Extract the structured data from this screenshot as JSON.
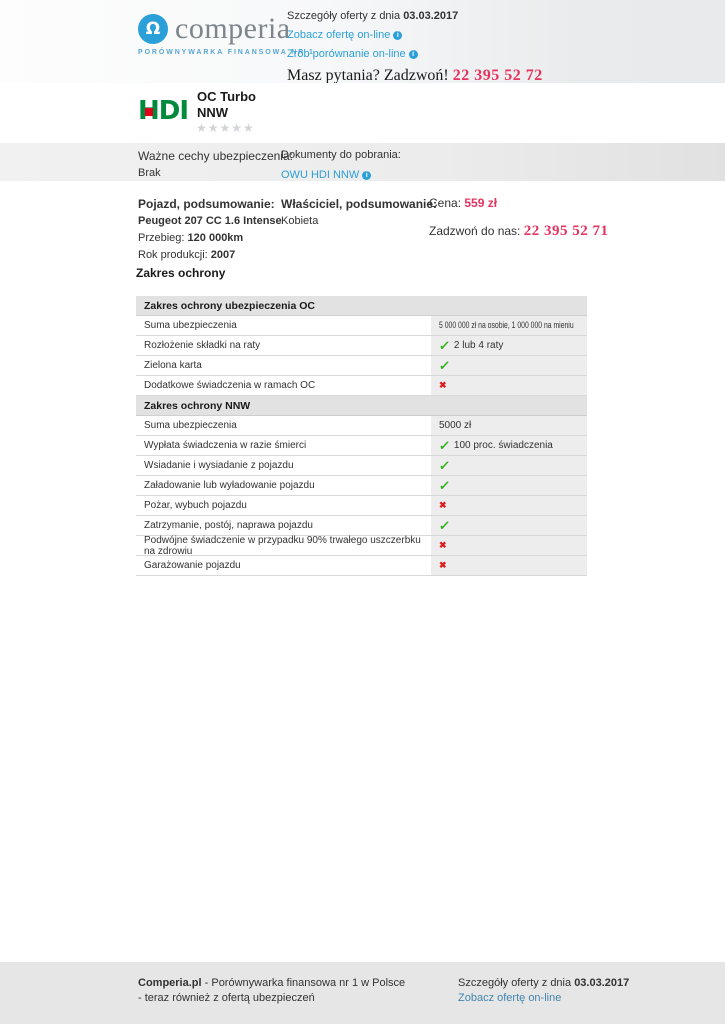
{
  "header": {
    "brand": "comperia",
    "tagline": "PORÓWNYWARKA FINANSOWA NR 1",
    "logo_icon_glyph": "Ω",
    "offer_date_label": "Szczegóły oferty z dnia",
    "offer_date": "03.03.2017",
    "link_view_offer": "Zobacz ofertę on-line",
    "link_compare": "Zrób porównanie on-line",
    "questions_text": "Masz pytania? Zadzwoń!",
    "phone": "22 395 52 72"
  },
  "product": {
    "insurer_logo": "HDI",
    "name_line1": "OC Turbo",
    "name_line2": "NNW",
    "rating_stars": 5
  },
  "features_band": {
    "features_label": "Ważne cechy ubezpieczenia:",
    "features_value": "Brak",
    "documents_label": "Dokumenty do pobrania:",
    "document_link": "OWU HDI NNW"
  },
  "summary": {
    "vehicle_title": "Pojazd, podsumowanie:",
    "vehicle_model": "Peugeot 207 CC 1.6 Intense",
    "mileage_label": "Przebieg:",
    "mileage_value": "120 000km",
    "year_label": "Rok produkcji:",
    "year_value": "2007",
    "owner_title": "Właściciel, podsumowanie:",
    "owner_value": "Kobieta",
    "price_label": "Cena:",
    "price_value": "559 zł",
    "call_label": "Zadzwoń do nas:",
    "call_phone": "22 395 52 71"
  },
  "coverage": {
    "heading": "Zakres ochrony",
    "rows": [
      {
        "type": "section",
        "label": "Zakres ochrony ubezpieczenia OC"
      },
      {
        "type": "row",
        "label": "Suma ubezpieczenia",
        "mark": "none",
        "value": "5 000 000 zł na osobie, 1 000 000 na mieniu"
      },
      {
        "type": "row",
        "label": "Rozłożenie składki na raty",
        "mark": "check",
        "value": "2 lub 4 raty"
      },
      {
        "type": "row",
        "label": "Zielona karta",
        "mark": "check",
        "value": ""
      },
      {
        "type": "row",
        "label": "Dodatkowe świadczenia w ramach OC",
        "mark": "cross",
        "value": ""
      },
      {
        "type": "section",
        "label": "Zakres ochrony NNW"
      },
      {
        "type": "row",
        "label": "Suma ubezpieczenia",
        "mark": "none",
        "value": "5000 zł"
      },
      {
        "type": "row",
        "label": "Wypłata świadczenia w razie śmierci",
        "mark": "check",
        "value": "100 proc. świadczenia"
      },
      {
        "type": "row",
        "label": "Wsiadanie i wysiadanie z pojazdu",
        "mark": "check",
        "value": ""
      },
      {
        "type": "row",
        "label": "Załadowanie lub wyładowanie pojazdu",
        "mark": "check",
        "value": ""
      },
      {
        "type": "row",
        "label": "Pożar, wybuch pojazdu",
        "mark": "cross",
        "value": ""
      },
      {
        "type": "row",
        "label": "Zatrzymanie, postój, naprawa pojazdu",
        "mark": "check",
        "value": ""
      },
      {
        "type": "row",
        "label": "Podwójne świadczenie w przypadku 90% trwałego uszczerbku na zdrowiu",
        "mark": "cross",
        "value": ""
      },
      {
        "type": "row",
        "label": "Garażowanie pojazdu",
        "mark": "cross",
        "value": ""
      }
    ]
  },
  "footer": {
    "brand": "Comperia.pl",
    "line1_rest": " - Porównywarka finansowa nr 1 w Polsce",
    "line2": "- teraz również z ofertą ubezpieczeń",
    "offer_date_label": "Szczegóły oferty z dnia",
    "offer_date": "03.03.2017",
    "link": "Zobacz ofertę on-line"
  },
  "colors": {
    "accent_blue": "#2b9fd8",
    "pink_red": "#e6335f",
    "check_green": "#35b11e",
    "cross_red": "#dd1c1c",
    "hdi_green": "#008a3c",
    "hdi_red": "#e2001a",
    "band_gray": "#ececec",
    "footer_gray": "#e6e6e7"
  }
}
